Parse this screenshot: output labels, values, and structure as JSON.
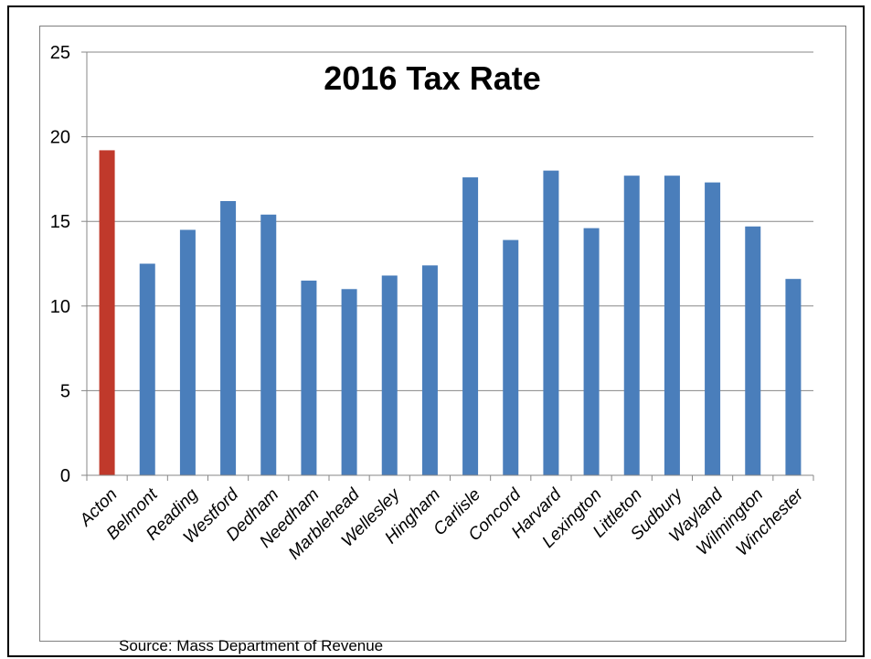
{
  "source_note": "Source: Mass Department of Revenue",
  "chart_data": {
    "type": "bar",
    "title": "2016 Tax Rate",
    "xlabel": "",
    "ylabel": "",
    "ylim": [
      0,
      25
    ],
    "yticks": [
      0,
      5,
      10,
      15,
      20,
      25
    ],
    "grid": true,
    "legend": "none",
    "categories": [
      "Acton",
      "Belmont",
      "Reading",
      "Westford",
      "Dedham",
      "Needham",
      "Marblehead",
      "Wellesley",
      "Hingham",
      "Carlisle",
      "Concord",
      "Harvard",
      "Lexington",
      "Littleton",
      "Sudbury",
      "Wayland",
      "Wilmington",
      "Winchester"
    ],
    "values": [
      19.2,
      12.5,
      14.5,
      16.2,
      15.4,
      11.5,
      11.0,
      11.8,
      12.4,
      17.6,
      13.9,
      18.0,
      14.6,
      17.7,
      17.7,
      17.3,
      14.7,
      11.6
    ],
    "colors": {
      "highlight": "#c0392b",
      "bar": "#4a7ebb",
      "grid": "#878787",
      "axis": "#878787"
    },
    "highlight_index": 0
  }
}
